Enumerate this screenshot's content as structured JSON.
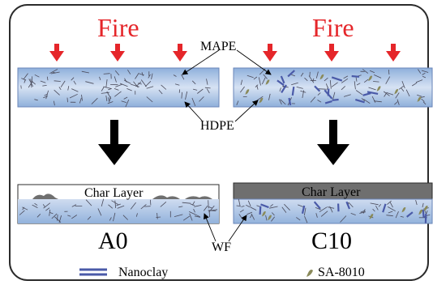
{
  "diagram": {
    "fire_label": "Fire",
    "labels": {
      "mape": "MAPE",
      "hdpe": "HDPE",
      "wf": "WF",
      "char_layer": "Char Layer",
      "sample_left": "A0",
      "sample_right": "C10"
    },
    "legend": [
      {
        "name": "Nanoclay",
        "icon": "nanoclay-double-line-icon"
      },
      {
        "name": "SA-8010",
        "icon": "sa8010-leaf-icon"
      }
    ],
    "colors": {
      "fire_text": "#e5262a",
      "fire_arrow": "#e5262a",
      "panel_fill": "#c4d3ec",
      "panel_gradient_edge": "#8fb0db",
      "char_dark": "#6f6f6f",
      "nanoclay": "#4a5aa8",
      "sa8010": "#8a8a5a",
      "frame_border": "#2b2b2b"
    }
  }
}
